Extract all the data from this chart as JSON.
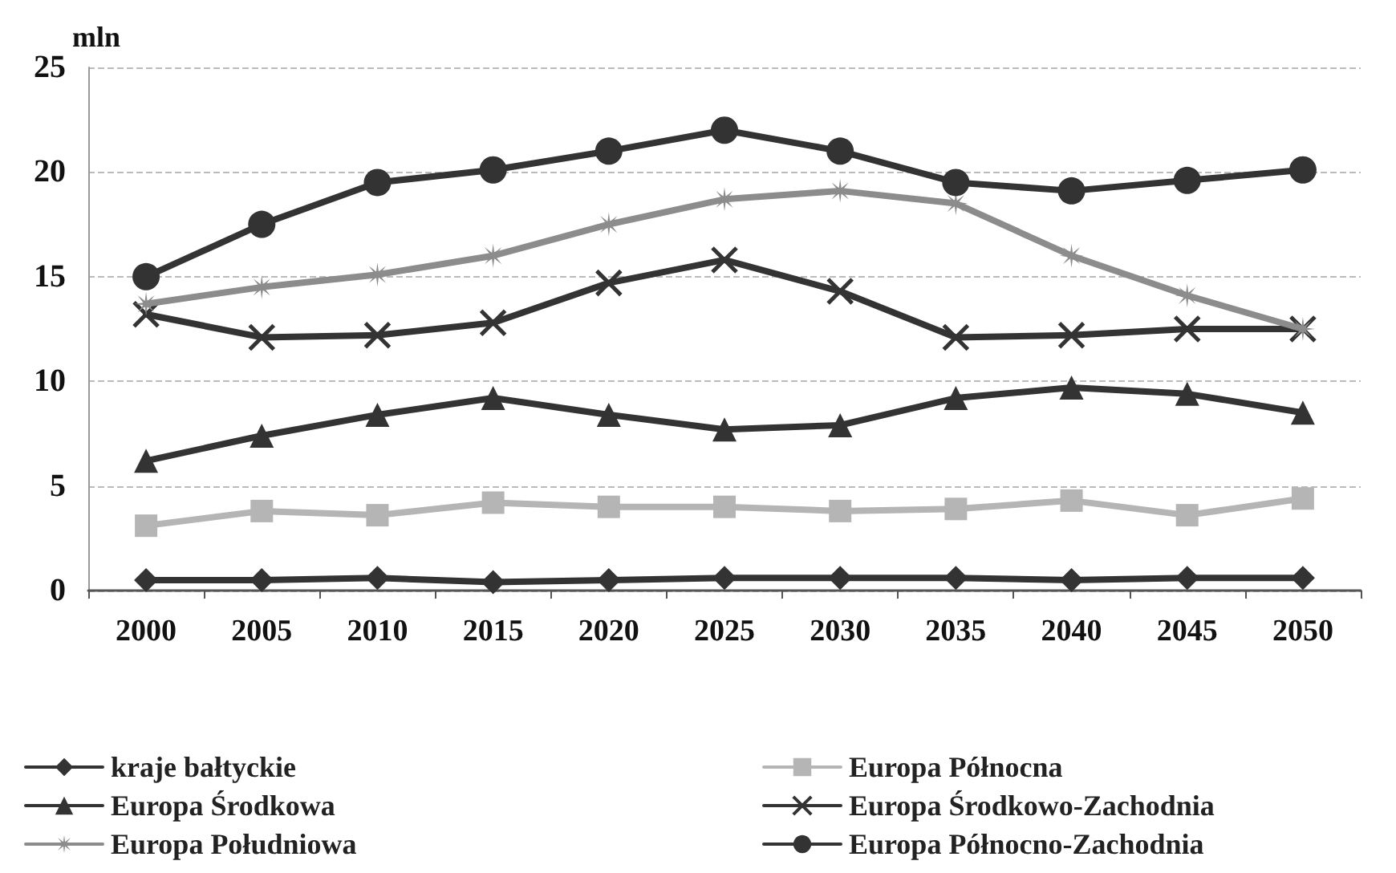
{
  "chart_data": {
    "type": "line",
    "ylabel": "mln",
    "categories": [
      "2000",
      "2005",
      "2010",
      "2015",
      "2020",
      "2025",
      "2030",
      "2035",
      "2040",
      "2045",
      "2050"
    ],
    "series": [
      {
        "name": "kraje bałtyckie",
        "color": "#333333",
        "marker": "diamond",
        "values": [
          0.5,
          0.5,
          0.6,
          0.4,
          0.5,
          0.6,
          0.6,
          0.6,
          0.5,
          0.6,
          0.6
        ]
      },
      {
        "name": "Europa Północna",
        "color": "#b5b5b5",
        "marker": "square",
        "values": [
          3.1,
          3.8,
          3.6,
          4.2,
          4.0,
          4.0,
          3.8,
          3.9,
          4.3,
          3.6,
          4.4
        ]
      },
      {
        "name": "Europa Środkowa",
        "color": "#333333",
        "marker": "triangle",
        "values": [
          6.2,
          7.4,
          8.4,
          9.2,
          8.4,
          7.7,
          7.9,
          9.2,
          9.7,
          9.4,
          8.5
        ]
      },
      {
        "name": "Europa Środkowo-Zachodnia",
        "color": "#333333",
        "marker": "cross",
        "values": [
          13.2,
          12.1,
          12.2,
          12.8,
          14.7,
          15.8,
          14.3,
          12.1,
          12.2,
          12.5,
          12.5
        ]
      },
      {
        "name": "Europa Południowa",
        "color": "#8c8c8c",
        "marker": "star",
        "values": [
          13.7,
          14.5,
          15.1,
          16.0,
          17.5,
          18.7,
          19.1,
          18.5,
          16.0,
          14.1,
          12.5
        ]
      },
      {
        "name": "Europa Północno-Zachodnia",
        "color": "#333333",
        "marker": "circle",
        "values": [
          15.0,
          17.5,
          19.5,
          20.1,
          21.0,
          22.0,
          21.0,
          19.5,
          19.1,
          19.6,
          20.1
        ]
      }
    ],
    "ylim": [
      0,
      25
    ],
    "yticks": [
      0,
      5,
      10,
      15,
      20,
      25
    ],
    "grid": "y",
    "legend": "bottom",
    "line_style": "solid"
  }
}
